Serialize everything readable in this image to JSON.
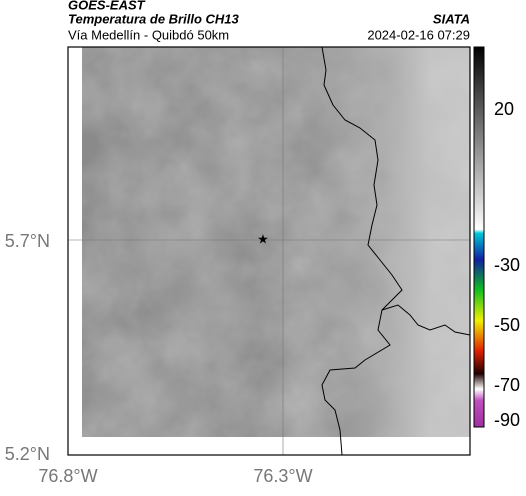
{
  "header": {
    "satellite": "GOES-EAST",
    "product": "Temperatura de Brillo CH13",
    "region": "Vía Medellín - Quibdó 50km",
    "source": "SIATA",
    "datetime": "2024-02-16 07:29"
  },
  "axes": {
    "lat_labels": [
      "5.7°N",
      "5.2°N"
    ],
    "lon_labels": [
      "76.8°W",
      "76.3°W"
    ]
  },
  "colorbar": {
    "labels": [
      "20",
      "-30",
      "-50",
      "-70",
      "-90"
    ]
  }
}
